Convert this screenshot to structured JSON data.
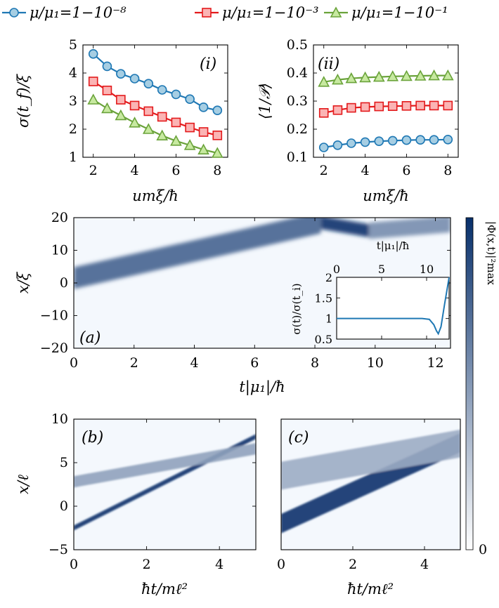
{
  "legend": {
    "entries": [
      {
        "label": "μ/μ₁=1−10⁻⁸",
        "color": "#1f78b4",
        "marker": "circle"
      },
      {
        "label": "μ/μ₁=1−10⁻³",
        "color": "#e31a1c",
        "marker": "square"
      },
      {
        "label": "μ/μ₁=1−10⁻¹",
        "color": "#6aa33a",
        "marker": "triangle"
      }
    ]
  },
  "colorbar": {
    "label": "|Φ(x,t)|²max",
    "min_label": "0",
    "colors": [
      "#ffffff",
      "#08306b"
    ]
  },
  "chart_data": [
    {
      "id": "panel-i",
      "type": "line",
      "panel_label": "(i)",
      "xlabel": "umξ/ħ",
      "ylabel": "σ(t_f)/ξ",
      "xlim": [
        1.5,
        8.5
      ],
      "ylim": [
        1,
        5
      ],
      "xticks": [
        2,
        4,
        6,
        8
      ],
      "yticks": [
        1,
        2,
        3,
        4,
        5
      ],
      "x": [
        2.0,
        2.67,
        3.33,
        4.0,
        4.67,
        5.33,
        6.0,
        6.67,
        7.33,
        8.0
      ],
      "series": [
        {
          "name": "μ/μ₁=1−10⁻⁸",
          "values": [
            4.68,
            4.24,
            3.97,
            3.8,
            3.62,
            3.4,
            3.24,
            3.07,
            2.78,
            2.67
          ]
        },
        {
          "name": "μ/μ₁=1−10⁻³",
          "values": [
            3.7,
            3.38,
            3.05,
            2.84,
            2.64,
            2.44,
            2.24,
            2.06,
            1.9,
            1.78
          ]
        },
        {
          "name": "μ/μ₁=1−10⁻¹",
          "values": [
            3.05,
            2.74,
            2.49,
            2.23,
            2.0,
            1.77,
            1.58,
            1.43,
            1.27,
            1.15
          ]
        }
      ]
    },
    {
      "id": "panel-ii",
      "type": "line",
      "panel_label": "(ii)",
      "xlabel": "umξ/ħ",
      "ylabel": "⟨1/𝒫⟩",
      "xlim": [
        1.5,
        8.5
      ],
      "ylim": [
        0.1,
        0.5
      ],
      "xticks": [
        2,
        4,
        6,
        8
      ],
      "yticks": [
        0.1,
        0.2,
        0.3,
        0.4,
        0.5
      ],
      "x": [
        2.0,
        2.67,
        3.33,
        4.0,
        4.67,
        5.33,
        6.0,
        6.67,
        7.33,
        8.0
      ],
      "series": [
        {
          "name": "μ/μ₁=1−10⁻⁸",
          "values": [
            0.135,
            0.143,
            0.15,
            0.154,
            0.157,
            0.159,
            0.161,
            0.162,
            0.162,
            0.163
          ]
        },
        {
          "name": "μ/μ₁=1−10⁻³",
          "values": [
            0.258,
            0.268,
            0.276,
            0.279,
            0.281,
            0.282,
            0.283,
            0.284,
            0.284,
            0.284
          ]
        },
        {
          "name": "μ/μ₁=1−10⁻¹",
          "values": [
            0.368,
            0.376,
            0.381,
            0.384,
            0.386,
            0.388,
            0.389,
            0.39,
            0.391,
            0.391
          ]
        }
      ]
    },
    {
      "id": "panel-a",
      "type": "heatmap",
      "panel_label": "(a)",
      "xlabel": "t|μ₁|/ħ",
      "ylabel": "x/ξ",
      "xlim": [
        0,
        12.5
      ],
      "ylim": [
        -20,
        20
      ],
      "xticks": [
        0,
        2,
        4,
        6,
        8,
        10,
        12
      ],
      "yticks": [
        -20,
        -10,
        0,
        10,
        20
      ],
      "features": [
        {
          "t": [
            0,
            8.2
          ],
          "x_center": [
            1.5,
            18.5
          ],
          "x_halfwidth": 3.3,
          "intensity": 0.75
        },
        {
          "t": [
            8.2,
            9.8
          ],
          "x_center": [
            18.5,
            16.0
          ],
          "x_halfwidth": 2.0,
          "intensity": 1.0
        },
        {
          "t": [
            9.8,
            12.5
          ],
          "x_center": [
            16.0,
            18.0
          ],
          "x_halfwidth": 2.5,
          "intensity": 0.55
        }
      ],
      "inset": {
        "type": "line",
        "xlabel": "t|μ₁|/ħ",
        "ylabel": "σ(t)/σ(t_i)",
        "xlim": [
          0,
          12.5
        ],
        "ylim": [
          0.5,
          2
        ],
        "xticks": [
          0,
          5,
          10
        ],
        "yticks": [
          0.5,
          1,
          1.5,
          2
        ],
        "x": [
          0,
          2,
          4,
          6,
          8,
          9.5,
          10.3,
          10.8,
          11.1,
          11.3,
          11.6,
          12.0,
          12.5
        ],
        "values": [
          1.0,
          1.0,
          1.0,
          1.0,
          1.0,
          1.0,
          0.98,
          0.85,
          0.7,
          0.63,
          0.8,
          1.35,
          2.0
        ]
      }
    },
    {
      "id": "panel-b",
      "type": "heatmap",
      "panel_label": "(b)",
      "xlabel": "ħt/mℓ²",
      "ylabel": "x/ℓ",
      "xlim": [
        0,
        5
      ],
      "ylim": [
        -5,
        10
      ],
      "xticks": [
        0,
        2,
        4
      ],
      "yticks": [
        -5,
        0,
        5,
        10
      ],
      "features": [
        {
          "t": [
            0,
            5
          ],
          "x_center": [
            -2.5,
            8.0
          ],
          "x_halfwidth": 0.28,
          "intensity": 1.0
        },
        {
          "t": [
            0,
            5
          ],
          "x_center": [
            2.8,
            6.6
          ],
          "x_halfwidth": 0.65,
          "intensity": 0.45
        }
      ]
    },
    {
      "id": "panel-c",
      "type": "heatmap",
      "panel_label": "(c)",
      "xlabel": "ħt/mℓ²",
      "ylabel": "",
      "xlim": [
        0,
        5
      ],
      "ylim": [
        -5,
        10
      ],
      "xticks": [
        0,
        2,
        4
      ],
      "yticks": [],
      "features": [
        {
          "t": [
            0,
            5
          ],
          "x_center": [
            -2.0,
            7.3
          ],
          "x_halfwidth": 1.1,
          "intensity": 1.0
        },
        {
          "t": [
            0,
            5
          ],
          "x_center": [
            3.5,
            7.2
          ],
          "x_halfwidth": 1.6,
          "intensity": 0.4
        }
      ]
    }
  ]
}
